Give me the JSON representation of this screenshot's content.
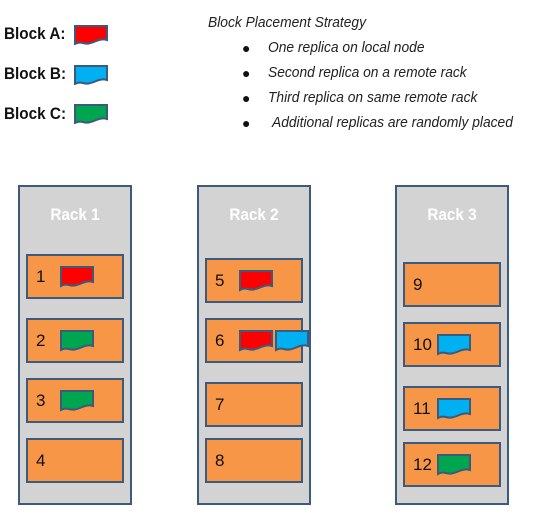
{
  "legend": {
    "items": [
      {
        "label": "Block A:",
        "color": "#ff0000"
      },
      {
        "label": "Block B:",
        "color": "#00b0f0"
      },
      {
        "label": "Block C:",
        "color": "#00a550"
      }
    ]
  },
  "strategy": {
    "title": "Block Placement Strategy",
    "bullets": [
      "One replica on local node",
      "Second replica on a remote rack",
      "Third replica on same remote rack",
      "Additional replicas are randomly placed"
    ]
  },
  "colors": {
    "rack_fill": "#d3d3d3",
    "node_fill": "#f79646",
    "border": "#3b5a7e",
    "block_a": "#ff0000",
    "block_b": "#00b0f0",
    "block_c": "#00a550"
  },
  "racks": [
    {
      "title": "Rack 1",
      "nodes": [
        {
          "number": "1",
          "blocks": [
            "A"
          ]
        },
        {
          "number": "2",
          "blocks": [
            "C"
          ]
        },
        {
          "number": "3",
          "blocks": [
            "C"
          ]
        },
        {
          "number": "4",
          "blocks": []
        }
      ]
    },
    {
      "title": "Rack 2",
      "nodes": [
        {
          "number": "5",
          "blocks": [
            "A"
          ]
        },
        {
          "number": "6",
          "blocks": [
            "A",
            "B"
          ]
        },
        {
          "number": "7",
          "blocks": []
        },
        {
          "number": "8",
          "blocks": []
        }
      ]
    },
    {
      "title": "Rack 3",
      "nodes": [
        {
          "number": "9",
          "blocks": []
        },
        {
          "number": "10",
          "blocks": [
            "B"
          ]
        },
        {
          "number": "11",
          "blocks": [
            "B"
          ]
        },
        {
          "number": "12",
          "blocks": [
            "C"
          ]
        }
      ]
    }
  ]
}
